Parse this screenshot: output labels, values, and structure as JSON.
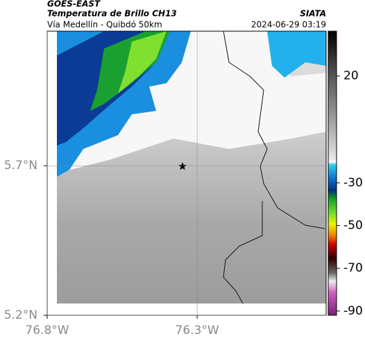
{
  "header": {
    "source": "GOES-EAST",
    "title": "Temperatura de Brillo CH13",
    "subtitle": "Vía Medellín - Quibdó 50km",
    "brand": "SIATA",
    "datetime": "2024-06-29 03:19"
  },
  "map": {
    "xlim": [
      -76.8,
      -75.87
    ],
    "ylim": [
      5.2,
      6.15
    ],
    "xticks": [
      {
        "value": -76.8,
        "label": "76.8°W"
      },
      {
        "value": -76.3,
        "label": "76.3°W"
      }
    ],
    "yticks": [
      {
        "value": 5.2,
        "label": "5.2°N"
      },
      {
        "value": 5.7,
        "label": "5.7°N"
      }
    ],
    "colorbar": {
      "clim": [
        -92,
        41
      ],
      "ticks": [
        20,
        -30,
        -50,
        -70,
        -90
      ]
    }
  }
}
